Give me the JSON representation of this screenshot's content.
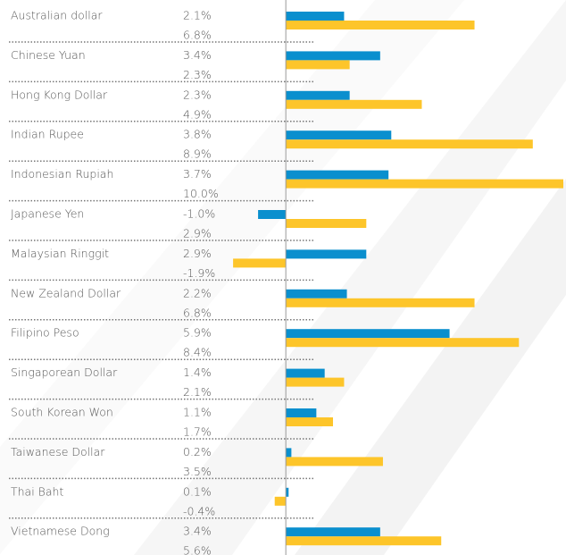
{
  "chart_data": {
    "type": "hbar",
    "categories": [
      "Australian dollar",
      "Chinese Yuan",
      "Hong Kong Dollar",
      "Indian Rupee",
      "Indonesian Rupiah",
      "Japanese Yen",
      "Malaysian Ringgit",
      "New Zealand Dollar",
      "Filipino Peso",
      "Singaporean Dollar",
      "South Korean Won",
      "Taiwanese Dollar",
      "Thai Baht",
      "Vietnamese Dong"
    ],
    "series": [
      {
        "color": "#0a8fce",
        "values": [
          2.1,
          3.4,
          2.3,
          3.8,
          3.7,
          -1.0,
          2.9,
          2.2,
          5.9,
          1.4,
          1.1,
          0.2,
          0.1,
          3.4
        ],
        "value_labels": [
          "2.1%",
          "3.4%",
          "2.3%",
          "3.8%",
          "3.7%",
          "-1.0%",
          "2.9%",
          "2.2%",
          "5.9%",
          "1.4%",
          "1.1%",
          "0.2%",
          "0.1%",
          "3.4%"
        ]
      },
      {
        "color": "#fdc52a",
        "values": [
          6.8,
          2.3,
          4.9,
          8.9,
          10.0,
          2.9,
          -1.9,
          6.8,
          8.4,
          2.1,
          1.7,
          3.5,
          -0.4,
          5.6
        ],
        "value_labels": [
          "6.8%",
          "2.3%",
          "4.9%",
          "8.9%",
          "10.0%",
          "2.9%",
          "-1.9%",
          "6.8%",
          "8.4%",
          "2.1%",
          "1.7%",
          "3.5%",
          "-0.4%",
          "5.6%"
        ]
      }
    ],
    "xlim": [
      -10.3,
      10
    ]
  }
}
